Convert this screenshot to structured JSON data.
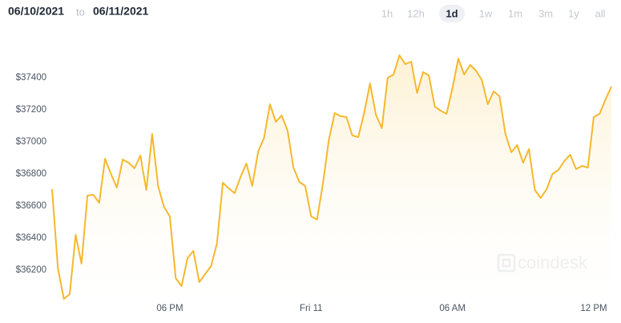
{
  "header": {
    "start_date": "06/10/2021",
    "separator": "to",
    "end_date": "06/11/2021"
  },
  "range_buttons": {
    "options": [
      "1h",
      "12h",
      "1d",
      "1w",
      "1m",
      "3m",
      "1y",
      "all"
    ],
    "selected": "1d"
  },
  "watermark": "coindesk",
  "chart_data": {
    "type": "line",
    "area": true,
    "color": "#f5b82e",
    "x": [
      13,
      13.25,
      13.5,
      13.75,
      14,
      14.25,
      14.5,
      14.75,
      15,
      15.25,
      15.5,
      15.75,
      16,
      16.25,
      16.5,
      16.75,
      17,
      17.25,
      17.5,
      17.75,
      18,
      18.25,
      18.5,
      18.75,
      19,
      19.25,
      19.5,
      19.75,
      20,
      20.25,
      20.5,
      20.75,
      21,
      21.25,
      21.5,
      21.75,
      22,
      22.25,
      22.5,
      22.75,
      23,
      23.25,
      23.5,
      23.75,
      24,
      24.25,
      24.5,
      24.75,
      25,
      25.25,
      25.5,
      25.75,
      26,
      26.25,
      26.5,
      26.75,
      27,
      27.25,
      27.5,
      27.75,
      28,
      28.25,
      28.5,
      28.75,
      29,
      29.25,
      29.5,
      29.75,
      30,
      30.25,
      30.5,
      30.75,
      31,
      31.25,
      31.5,
      31.75,
      32,
      32.25,
      32.5,
      32.75,
      33,
      33.25,
      33.5,
      33.75,
      34,
      34.25,
      34.5,
      34.75,
      35,
      35.25,
      35.5,
      35.75,
      36,
      36.25,
      36.5,
      36.75
    ],
    "values": [
      36705,
      36210,
      36020,
      36050,
      36420,
      36240,
      36665,
      36670,
      36620,
      36895,
      36800,
      36715,
      36890,
      36870,
      36835,
      36915,
      36700,
      37050,
      36725,
      36595,
      36535,
      36150,
      36100,
      36275,
      36320,
      36125,
      36175,
      36225,
      36365,
      36745,
      36710,
      36680,
      36780,
      36865,
      36725,
      36940,
      37025,
      37235,
      37125,
      37165,
      37070,
      36840,
      36750,
      36725,
      36535,
      36515,
      36740,
      37010,
      37180,
      37160,
      37155,
      37040,
      37030,
      37180,
      37365,
      37170,
      37085,
      37400,
      37420,
      37540,
      37485,
      37500,
      37305,
      37435,
      37415,
      37220,
      37195,
      37175,
      37335,
      37520,
      37420,
      37480,
      37445,
      37385,
      37235,
      37315,
      37285,
      37050,
      36935,
      36980,
      36870,
      36955,
      36700,
      36650,
      36705,
      36800,
      36825,
      36880,
      36920,
      36830,
      36850,
      36840,
      37155,
      37175,
      37265,
      37345
    ],
    "xlim": [
      13,
      36.75
    ],
    "xticks": [
      {
        "value": 18,
        "label": "06 PM"
      },
      {
        "value": 24,
        "label": "Fri 11"
      },
      {
        "value": 30,
        "label": "06 AM"
      },
      {
        "value": 36,
        "label": "12 PM"
      }
    ],
    "ylim": [
      36000,
      37700
    ],
    "yticks": [
      {
        "value": 36200,
        "label": "$36200"
      },
      {
        "value": 36400,
        "label": "$36400"
      },
      {
        "value": 36600,
        "label": "$36600"
      },
      {
        "value": 36800,
        "label": "$36800"
      },
      {
        "value": 37000,
        "label": "$37000"
      },
      {
        "value": 37200,
        "label": "$37200"
      },
      {
        "value": 37400,
        "label": "$37400"
      }
    ],
    "grid": false
  }
}
